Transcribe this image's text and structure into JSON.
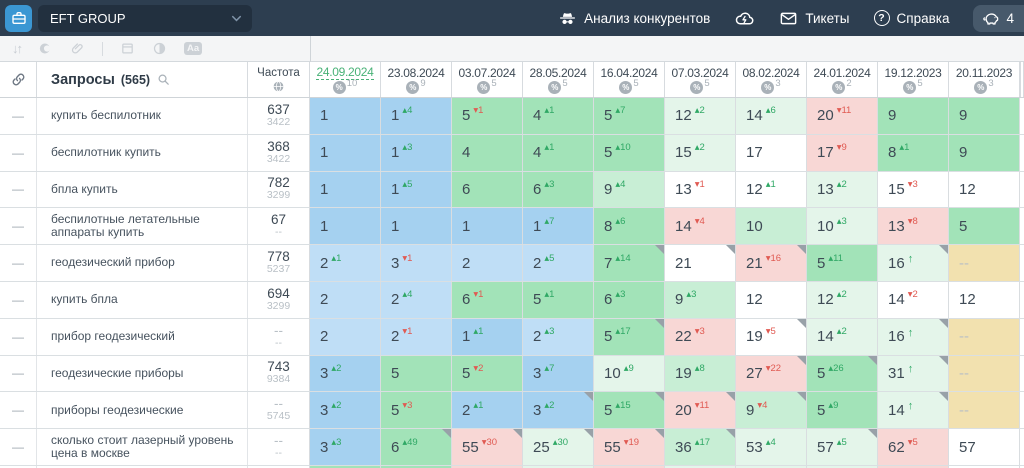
{
  "navbar": {
    "project_name": "EFT GROUP",
    "competitors_label": "Анализ конкурентов",
    "tickets_label": "Тикеты",
    "help_label": "Справка",
    "chat_count": "4"
  },
  "toolbar": {
    "icons": [
      "sort-icon",
      "target-circle-icon",
      "paperclip-icon",
      "calendar-icon",
      "contrast-icon",
      "font-size-icon"
    ]
  },
  "colors": {
    "b1": "#a5d1f0",
    "b2": "#bfdef6",
    "g1": "#a2e3b8",
    "g2": "#c8eed5",
    "g3": "#e4f5ea",
    "pink": "#f8d7d5",
    "tan": "#f2e1af",
    "white": "#ffffff",
    "accent_green": "#49b277",
    "delta_up": "#2fa865",
    "delta_down": "#e05a52",
    "navbar_bg": "#2d3e50",
    "app_icon_bg": "#3b97d3"
  },
  "table": {
    "queries_label": "Запросы",
    "queries_count": "(565)",
    "frequency_label": "Частота",
    "columns": [
      {
        "date": "24.09.2024",
        "count": "10",
        "selected": true
      },
      {
        "date": "23.08.2024",
        "count": "9"
      },
      {
        "date": "03.07.2024",
        "count": "5"
      },
      {
        "date": "28.05.2024",
        "count": "5"
      },
      {
        "date": "16.04.2024",
        "count": "5"
      },
      {
        "date": "07.03.2024",
        "count": "5"
      },
      {
        "date": "08.02.2024",
        "count": "3"
      },
      {
        "date": "24.01.2024",
        "count": "2"
      },
      {
        "date": "19.12.2023",
        "count": "5"
      },
      {
        "date": "20.11.2023",
        "count": "3"
      }
    ],
    "rows": [
      {
        "query": "купить беспилотник",
        "freq": "637",
        "freq2": "3422",
        "cells": [
          {
            "v": "1",
            "bg": "b1"
          },
          {
            "v": "1",
            "delta": "4",
            "dir": "up",
            "bg": "b1"
          },
          {
            "v": "5",
            "delta": "1",
            "dir": "down",
            "bg": "g1"
          },
          {
            "v": "4",
            "delta": "1",
            "dir": "up",
            "bg": "g1"
          },
          {
            "v": "5",
            "delta": "7",
            "dir": "up",
            "bg": "g1"
          },
          {
            "v": "12",
            "delta": "2",
            "dir": "up",
            "bg": "g3"
          },
          {
            "v": "14",
            "delta": "6",
            "dir": "up",
            "bg": "g3"
          },
          {
            "v": "20",
            "delta": "11",
            "dir": "down",
            "bg": "pink"
          },
          {
            "v": "9",
            "bg": "g1"
          },
          {
            "v": "9",
            "bg": "g1"
          }
        ]
      },
      {
        "query": "беспилотник купить",
        "freq": "368",
        "freq2": "3422",
        "cells": [
          {
            "v": "1",
            "bg": "b1"
          },
          {
            "v": "1",
            "delta": "3",
            "dir": "up",
            "bg": "b1"
          },
          {
            "v": "4",
            "bg": "g1"
          },
          {
            "v": "4",
            "delta": "1",
            "dir": "up",
            "bg": "g1"
          },
          {
            "v": "5",
            "delta": "10",
            "dir": "up",
            "bg": "g1"
          },
          {
            "v": "15",
            "delta": "2",
            "dir": "up",
            "bg": "g3"
          },
          {
            "v": "17",
            "bg": "white"
          },
          {
            "v": "17",
            "delta": "9",
            "dir": "down",
            "bg": "pink"
          },
          {
            "v": "8",
            "delta": "1",
            "dir": "up",
            "bg": "g1"
          },
          {
            "v": "9",
            "bg": "g1"
          }
        ]
      },
      {
        "query": "бпла купить",
        "freq": "782",
        "freq2": "3299",
        "cells": [
          {
            "v": "1",
            "bg": "b1"
          },
          {
            "v": "1",
            "delta": "5",
            "dir": "up",
            "bg": "b1"
          },
          {
            "v": "6",
            "bg": "g1"
          },
          {
            "v": "6",
            "delta": "3",
            "dir": "up",
            "bg": "g1"
          },
          {
            "v": "9",
            "delta": "4",
            "dir": "up",
            "bg": "g2"
          },
          {
            "v": "13",
            "delta": "1",
            "dir": "down",
            "bg": "white"
          },
          {
            "v": "12",
            "delta": "1",
            "dir": "up",
            "bg": "white"
          },
          {
            "v": "13",
            "delta": "2",
            "dir": "up",
            "bg": "g3"
          },
          {
            "v": "15",
            "delta": "3",
            "dir": "down",
            "bg": "white"
          },
          {
            "v": "12",
            "bg": "white"
          }
        ]
      },
      {
        "query": "беспилотные летательные аппараты купить",
        "freq": "67",
        "freq2": "--",
        "cells": [
          {
            "v": "1",
            "bg": "b1"
          },
          {
            "v": "1",
            "bg": "b1"
          },
          {
            "v": "1",
            "bg": "b1"
          },
          {
            "v": "1",
            "delta": "7",
            "dir": "up",
            "bg": "b1"
          },
          {
            "v": "8",
            "delta": "6",
            "dir": "up",
            "bg": "g1"
          },
          {
            "v": "14",
            "delta": "4",
            "dir": "down",
            "bg": "pink"
          },
          {
            "v": "10",
            "bg": "g2"
          },
          {
            "v": "10",
            "delta": "3",
            "dir": "up",
            "bg": "g3"
          },
          {
            "v": "13",
            "delta": "8",
            "dir": "down",
            "bg": "pink"
          },
          {
            "v": "5",
            "bg": "g1"
          }
        ]
      },
      {
        "query": "геодезический прибор",
        "freq": "778",
        "freq2": "5237",
        "cells": [
          {
            "v": "2",
            "delta": "1",
            "dir": "up",
            "bg": "b2"
          },
          {
            "v": "3",
            "delta": "1",
            "dir": "down",
            "bg": "b2"
          },
          {
            "v": "2",
            "bg": "b2"
          },
          {
            "v": "2",
            "delta": "5",
            "dir": "up",
            "bg": "b2"
          },
          {
            "v": "7",
            "delta": "14",
            "dir": "up",
            "bg": "g1",
            "marker": true
          },
          {
            "v": "21",
            "bg": "white",
            "marker": true
          },
          {
            "v": "21",
            "delta": "16",
            "dir": "down",
            "bg": "pink",
            "marker": true
          },
          {
            "v": "5",
            "delta": "11",
            "dir": "up",
            "bg": "g1"
          },
          {
            "v": "16",
            "dir": "new",
            "bg": "g3",
            "marker": true
          },
          {
            "v": "--",
            "bg": "tan"
          }
        ]
      },
      {
        "query": "купить бпла",
        "freq": "694",
        "freq2": "3299",
        "cells": [
          {
            "v": "2",
            "bg": "b2"
          },
          {
            "v": "2",
            "delta": "4",
            "dir": "up",
            "bg": "b2"
          },
          {
            "v": "6",
            "delta": "1",
            "dir": "down",
            "bg": "g1"
          },
          {
            "v": "5",
            "delta": "1",
            "dir": "up",
            "bg": "g1"
          },
          {
            "v": "6",
            "delta": "3",
            "dir": "up",
            "bg": "g1"
          },
          {
            "v": "9",
            "delta": "3",
            "dir": "up",
            "bg": "g2"
          },
          {
            "v": "12",
            "bg": "white"
          },
          {
            "v": "12",
            "delta": "2",
            "dir": "up",
            "bg": "g3"
          },
          {
            "v": "14",
            "delta": "2",
            "dir": "down",
            "bg": "white"
          },
          {
            "v": "12",
            "bg": "white"
          }
        ]
      },
      {
        "query": "прибор геодезический",
        "freq": "--",
        "freq2": "--",
        "cells": [
          {
            "v": "2",
            "bg": "b2"
          },
          {
            "v": "2",
            "delta": "1",
            "dir": "down",
            "bg": "b2"
          },
          {
            "v": "1",
            "delta": "1",
            "dir": "up",
            "bg": "b1"
          },
          {
            "v": "2",
            "delta": "3",
            "dir": "up",
            "bg": "b2"
          },
          {
            "v": "5",
            "delta": "17",
            "dir": "up",
            "bg": "g1",
            "marker": true
          },
          {
            "v": "22",
            "delta": "3",
            "dir": "down",
            "bg": "pink"
          },
          {
            "v": "19",
            "delta": "5",
            "dir": "down",
            "bg": "white",
            "marker": true
          },
          {
            "v": "14",
            "delta": "2",
            "dir": "up",
            "bg": "g3"
          },
          {
            "v": "16",
            "dir": "new",
            "bg": "g3",
            "marker": true
          },
          {
            "v": "--",
            "bg": "tan"
          }
        ]
      },
      {
        "query": "геодезические приборы",
        "freq": "743",
        "freq2": "9384",
        "cells": [
          {
            "v": "3",
            "delta": "2",
            "dir": "up",
            "bg": "b1"
          },
          {
            "v": "5",
            "bg": "g1"
          },
          {
            "v": "5",
            "delta": "2",
            "dir": "down",
            "bg": "g1"
          },
          {
            "v": "3",
            "delta": "7",
            "dir": "up",
            "bg": "b1"
          },
          {
            "v": "10",
            "delta": "9",
            "dir": "up",
            "bg": "g3"
          },
          {
            "v": "19",
            "delta": "8",
            "dir": "up",
            "bg": "g2"
          },
          {
            "v": "27",
            "delta": "22",
            "dir": "down",
            "bg": "pink",
            "marker": true
          },
          {
            "v": "5",
            "delta": "26",
            "dir": "up",
            "bg": "g1",
            "marker": true
          },
          {
            "v": "31",
            "dir": "new",
            "bg": "g3",
            "marker": true
          },
          {
            "v": "--",
            "bg": "tan"
          }
        ]
      },
      {
        "query": "приборы геодезические",
        "freq": "--",
        "freq2": "5745",
        "cells": [
          {
            "v": "3",
            "delta": "2",
            "dir": "up",
            "bg": "b1"
          },
          {
            "v": "5",
            "delta": "3",
            "dir": "down",
            "bg": "g1"
          },
          {
            "v": "2",
            "delta": "1",
            "dir": "up",
            "bg": "b1"
          },
          {
            "v": "3",
            "delta": "2",
            "dir": "up",
            "bg": "b1",
            "marker": true
          },
          {
            "v": "5",
            "delta": "15",
            "dir": "up",
            "bg": "g1",
            "marker": true
          },
          {
            "v": "20",
            "delta": "11",
            "dir": "down",
            "bg": "pink",
            "marker": true
          },
          {
            "v": "9",
            "delta": "4",
            "dir": "down",
            "bg": "g2",
            "marker": true
          },
          {
            "v": "5",
            "delta": "9",
            "dir": "up",
            "bg": "g1"
          },
          {
            "v": "14",
            "dir": "new",
            "bg": "g3",
            "marker": true
          },
          {
            "v": "--",
            "bg": "tan"
          }
        ]
      },
      {
        "query": "сколько стоит лазерный уровень цена в москве",
        "freq": "--",
        "freq2": "--",
        "cells": [
          {
            "v": "3",
            "delta": "3",
            "dir": "up",
            "bg": "b1"
          },
          {
            "v": "6",
            "delta": "49",
            "dir": "up",
            "bg": "g1",
            "marker": true
          },
          {
            "v": "55",
            "delta": "30",
            "dir": "down",
            "bg": "pink",
            "marker": true
          },
          {
            "v": "25",
            "delta": "30",
            "dir": "up",
            "bg": "g3",
            "marker": true
          },
          {
            "v": "55",
            "delta": "19",
            "dir": "down",
            "bg": "pink",
            "marker": true
          },
          {
            "v": "36",
            "delta": "17",
            "dir": "up",
            "bg": "g2",
            "marker": true
          },
          {
            "v": "53",
            "delta": "4",
            "dir": "up",
            "bg": "g3"
          },
          {
            "v": "57",
            "delta": "5",
            "dir": "up",
            "bg": "g3",
            "marker": true
          },
          {
            "v": "62",
            "delta": "5",
            "dir": "down",
            "bg": "pink"
          },
          {
            "v": "57",
            "bg": "white"
          }
        ]
      }
    ],
    "next_row_colors": [
      "g1",
      "g1",
      "pink",
      "g3",
      "pink",
      "g3",
      "g3",
      "g3",
      "pink",
      "white"
    ]
  }
}
